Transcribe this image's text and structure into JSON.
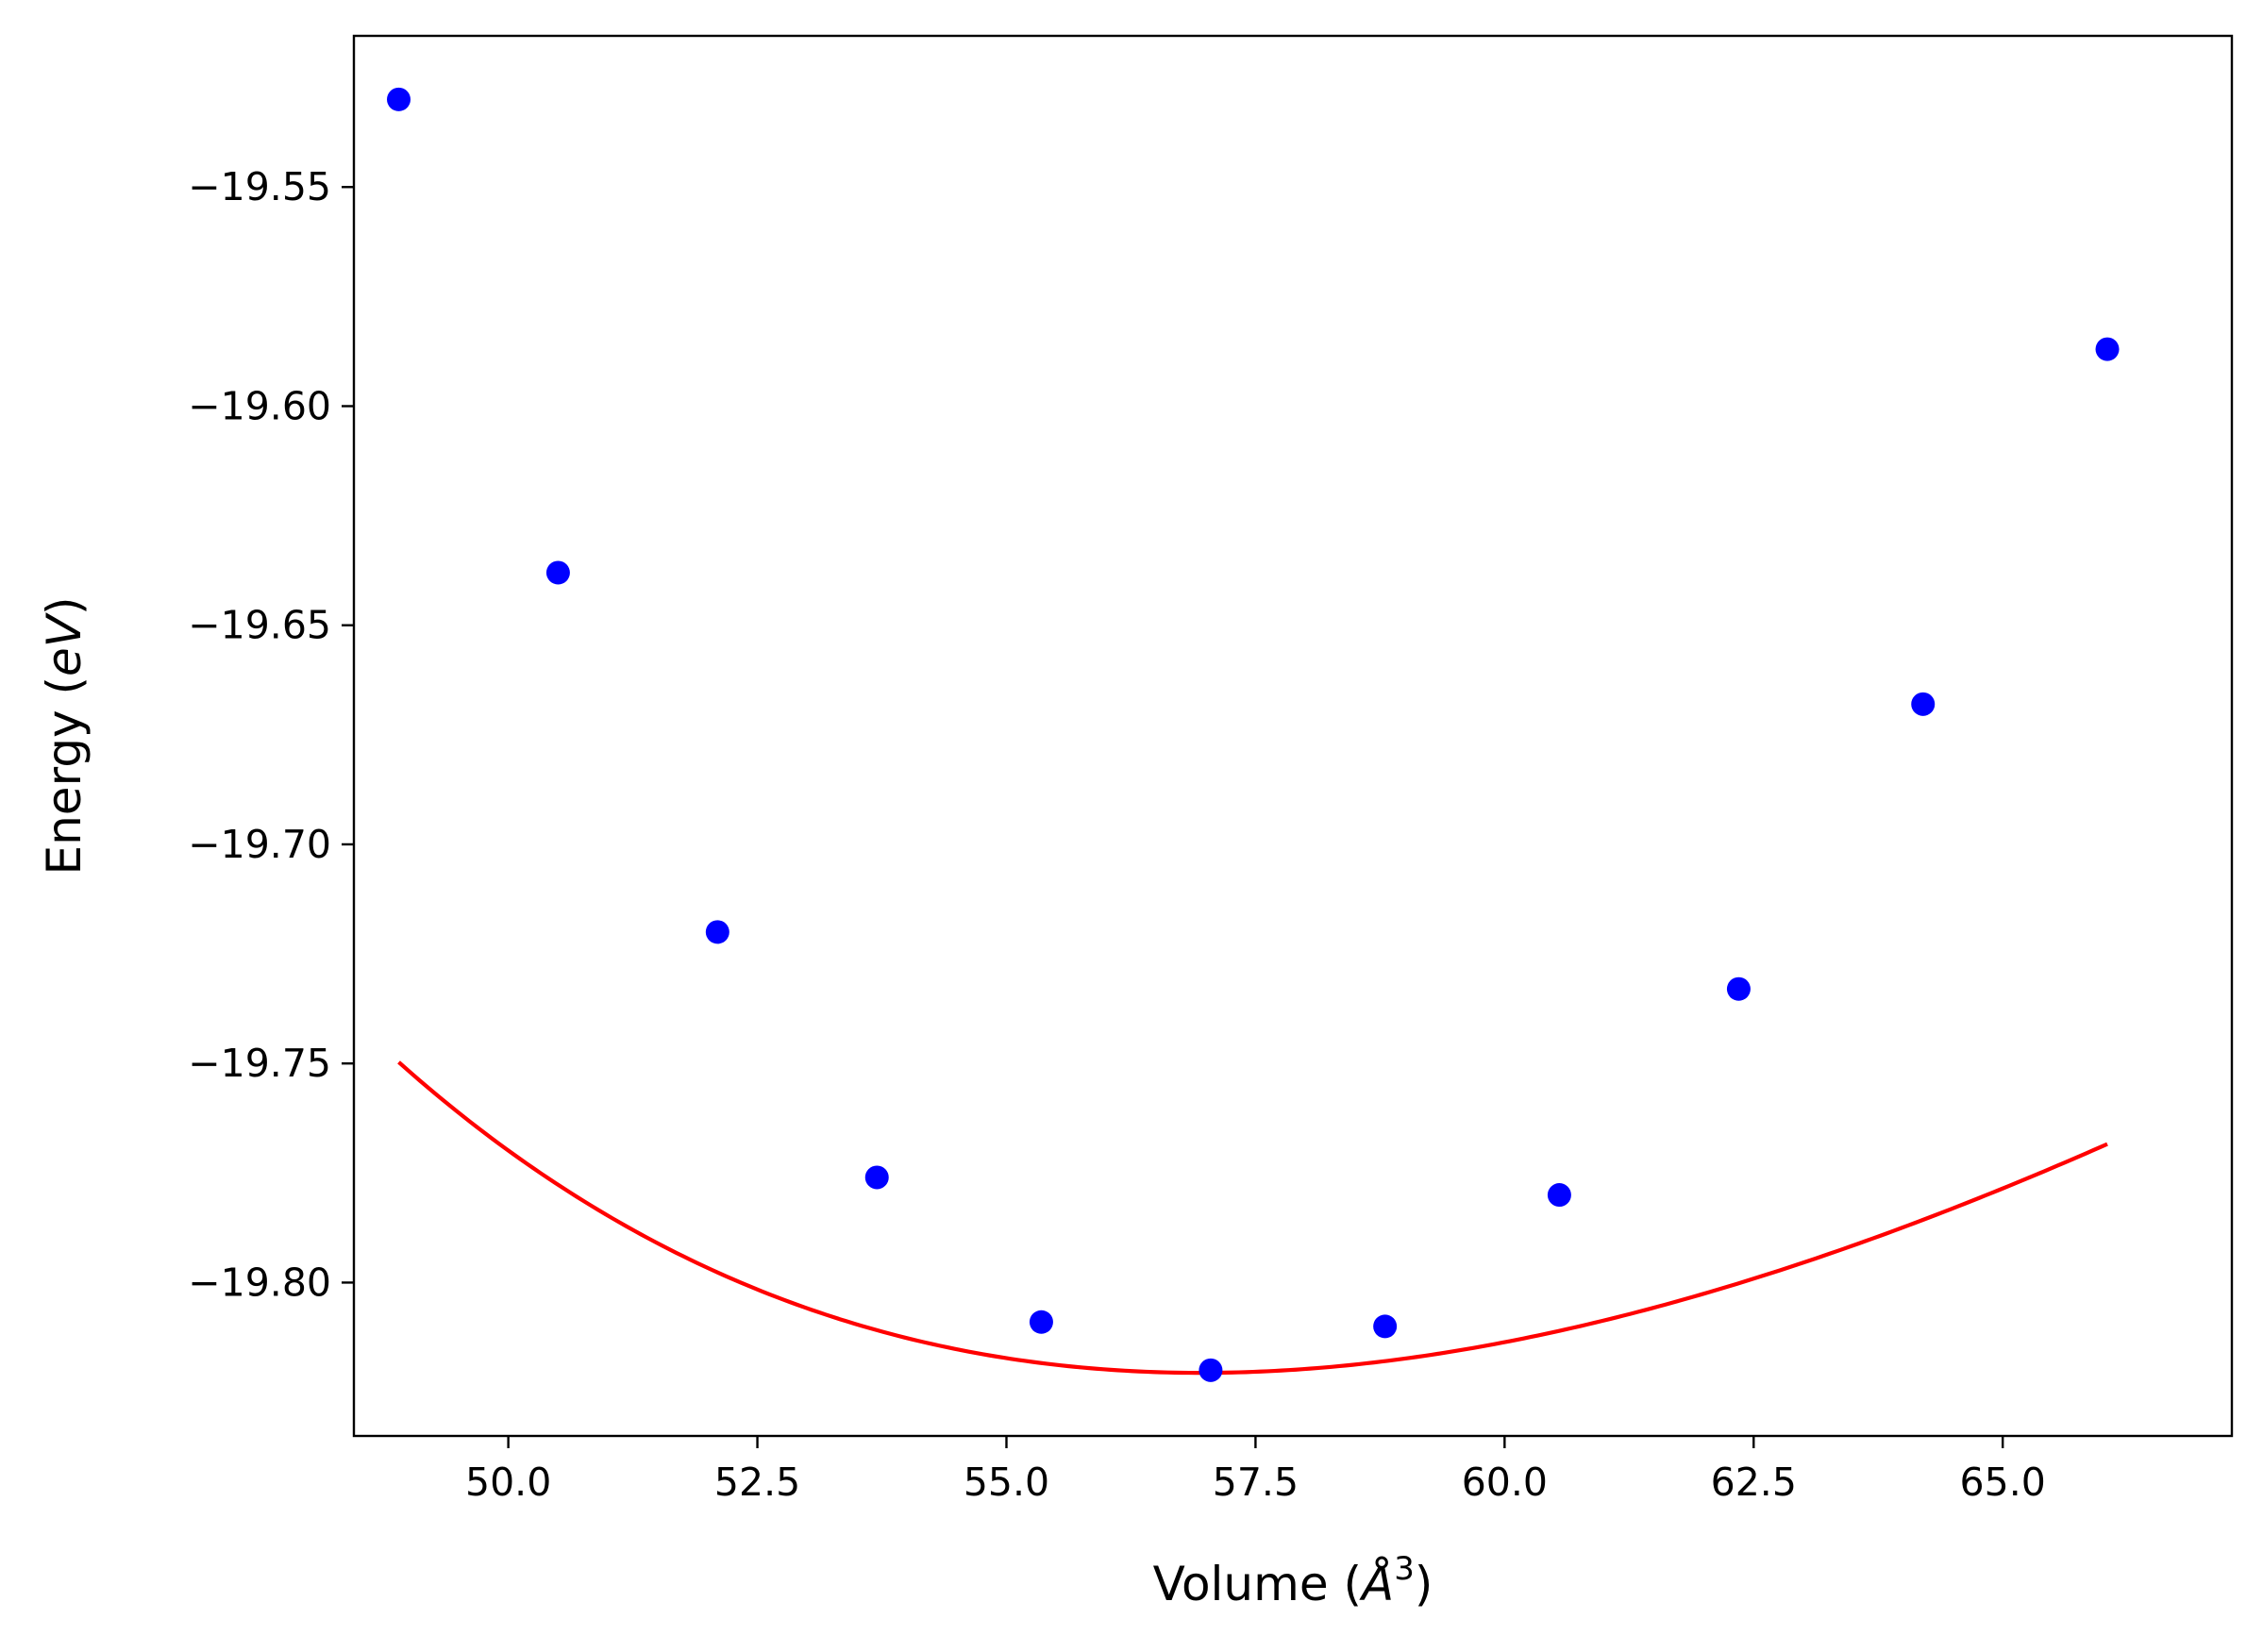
{
  "chart_data": {
    "type": "line",
    "title": "",
    "xlabel": {
      "prefix": "Volume (",
      "italic": "Å",
      "sup": "3",
      "suffix": ")"
    },
    "ylabel": {
      "prefix": "Energy (",
      "italic": "eV",
      "suffix": ")"
    },
    "xlim": [
      48.45,
      67.3
    ],
    "ylim": [
      -19.835,
      -19.5155
    ],
    "x_ticks": [
      50.0,
      52.5,
      55.0,
      57.5,
      60.0,
      62.5,
      65.0
    ],
    "x_tick_labels": [
      "50.0",
      "52.5",
      "55.0",
      "57.5",
      "60.0",
      "62.5",
      "65.0"
    ],
    "y_ticks": [
      -19.55,
      -19.6,
      -19.65,
      -19.7,
      -19.75,
      -19.8
    ],
    "y_tick_labels": [
      "−19.55",
      "−19.60",
      "−19.65",
      "−19.70",
      "−19.75",
      "−19.80"
    ],
    "grid": false,
    "legend": "none",
    "series": [
      {
        "kind": "points",
        "color": "#0000ff",
        "x": [
          48.9,
          50.5,
          52.1,
          53.7,
          55.35,
          57.05,
          58.8,
          60.55,
          62.35,
          64.2,
          66.05
        ],
        "y": [
          -19.53,
          -19.638,
          -19.72,
          -19.776,
          -19.809,
          -19.82,
          -19.81,
          -19.78,
          -19.733,
          -19.668,
          -19.587
        ]
      },
      {
        "kind": "fit-curve",
        "color": "#ff0000",
        "equation_of_state": {
          "E0": -19.8206,
          "V0": 56.95,
          "B0": 0.09425,
          "B0_prime": 4.5
        }
      }
    ]
  }
}
